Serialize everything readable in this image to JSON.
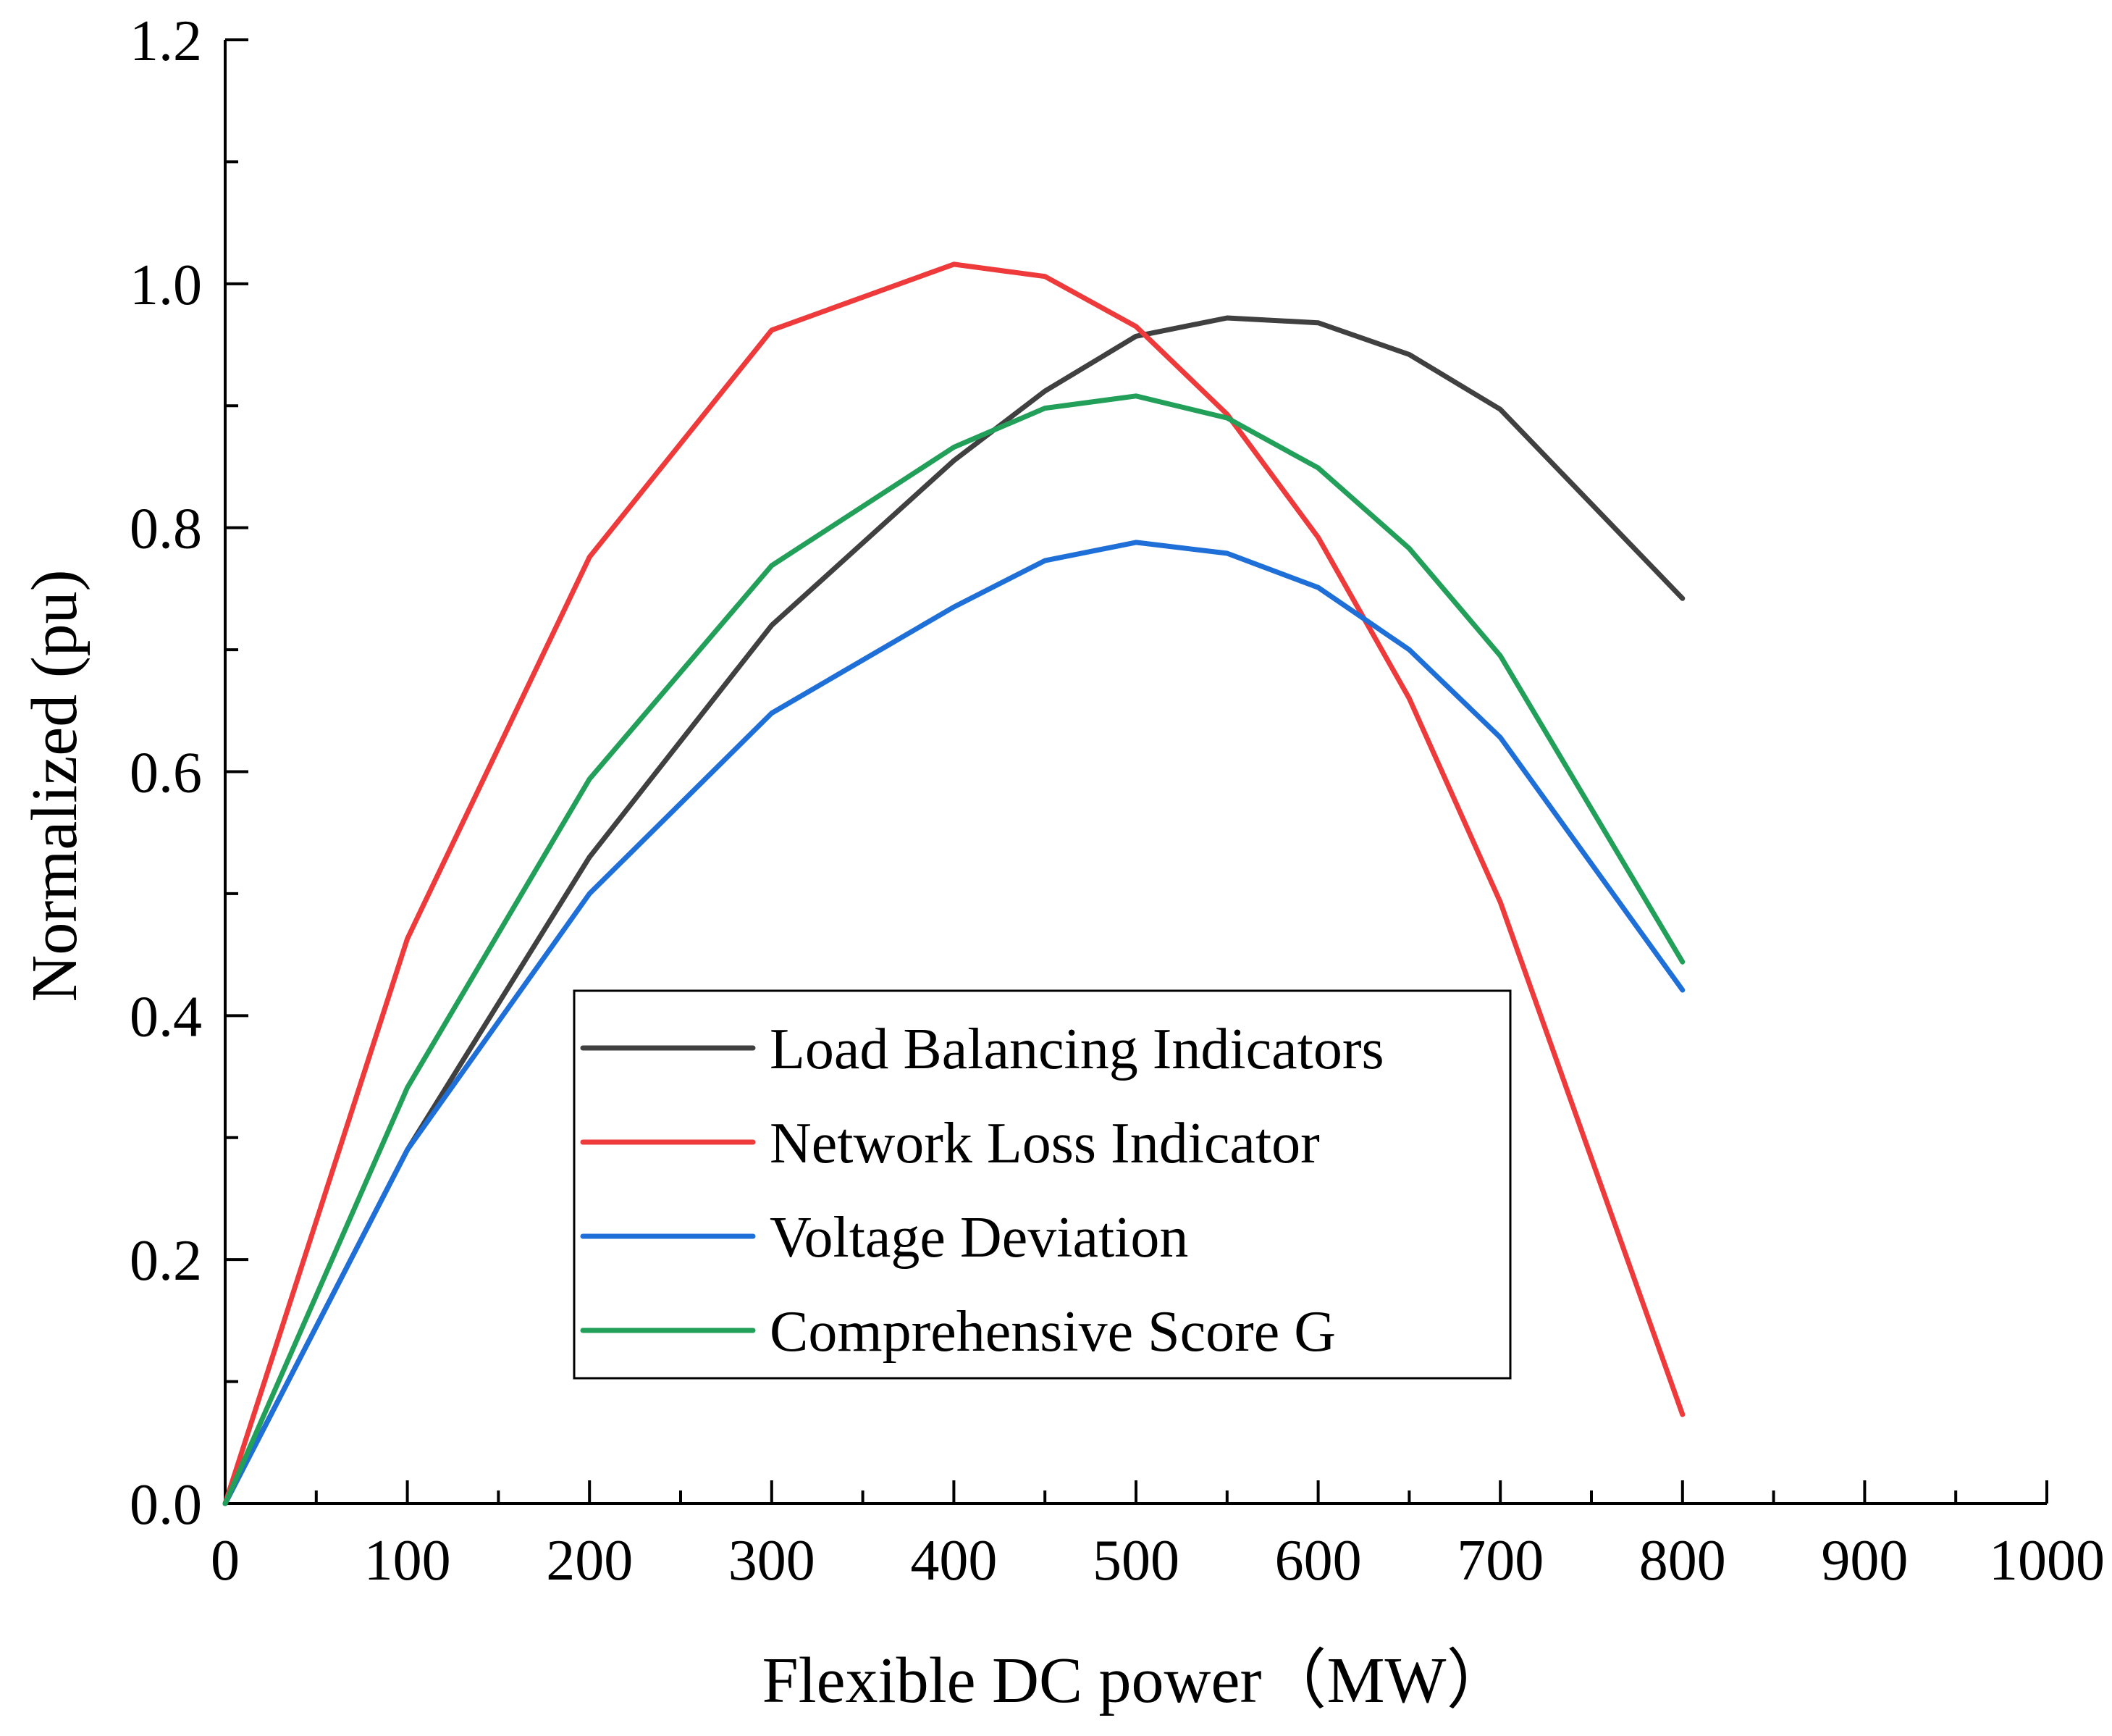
{
  "chart_data": {
    "type": "line",
    "title": "",
    "xlabel": "Flexible DC power（MW）",
    "ylabel": "Normalized (pu)",
    "xlim": [
      0,
      1000
    ],
    "ylim": [
      0,
      1.2
    ],
    "x_ticks": [
      "0",
      "100",
      "200",
      "300",
      "400",
      "500",
      "600",
      "700",
      "800",
      "900",
      "1000"
    ],
    "y_ticks": [
      "0.0",
      "0.2",
      "0.4",
      "0.6",
      "0.8",
      "1.0",
      "1.2"
    ],
    "grid": false,
    "legend_position": "center",
    "x": [
      0,
      100,
      200,
      300,
      400,
      450,
      500,
      550,
      600,
      650,
      700,
      800
    ],
    "series": [
      {
        "name": "Load Balancing Indicators",
        "color": "#404040",
        "values": [
          0,
          0.29,
          0.53,
          0.72,
          0.855,
          0.912,
          0.957,
          0.972,
          0.968,
          0.942,
          0.897,
          0.742
        ]
      },
      {
        "name": "Network Loss Indicator",
        "color": "#ee3a3a",
        "values": [
          0,
          0.463,
          0.776,
          0.962,
          1.016,
          1.006,
          0.965,
          0.893,
          0.792,
          0.66,
          0.493,
          0.073
        ]
      },
      {
        "name": "Voltage Deviation",
        "color": "#1f6fd8",
        "values": [
          0,
          0.29,
          0.5,
          0.648,
          0.735,
          0.773,
          0.788,
          0.779,
          0.751,
          0.7,
          0.628,
          0.421
        ]
      },
      {
        "name": "Comprehensive Score G",
        "color": "#22a05a",
        "values": [
          0,
          0.341,
          0.594,
          0.769,
          0.866,
          0.898,
          0.908,
          0.89,
          0.849,
          0.783,
          0.695,
          0.444
        ]
      }
    ]
  }
}
